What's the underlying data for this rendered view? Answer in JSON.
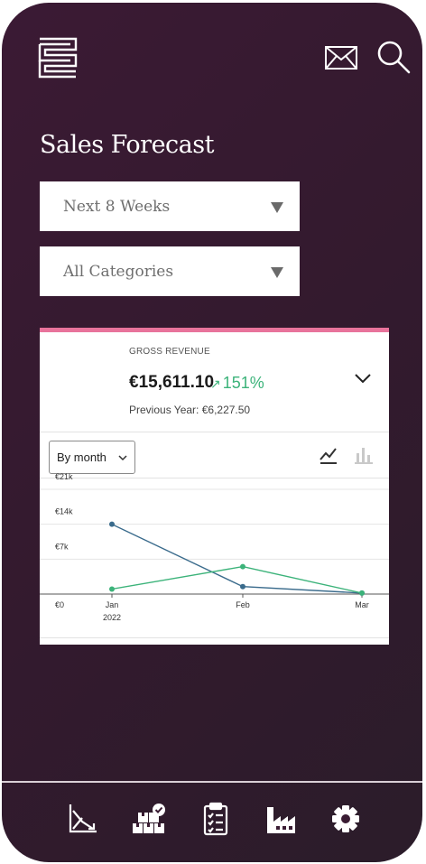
{
  "header": {
    "logo_icon": "brand-logo-icon",
    "mail_icon": "mail-icon",
    "search_icon": "search-icon"
  },
  "page": {
    "title": "Sales Forecast"
  },
  "filters": {
    "period": "Next 8 Weeks",
    "category": "All Categories"
  },
  "card": {
    "accent_color": "#e8739b",
    "label": "GROSS REVENUE",
    "amount": "€15,611.10",
    "growth": "151%",
    "growth_color": "#3cb37a",
    "previous": "Previous Year: €6,227.50",
    "grouping": "By month"
  },
  "chart_data": {
    "type": "line",
    "categories": [
      "Jan",
      "Feb",
      "Mar"
    ],
    "x_sublabels": [
      "2022",
      "",
      ""
    ],
    "y_ticks": [
      "€0",
      "€7k",
      "€14k",
      "€21k"
    ],
    "ylim": [
      0,
      21000
    ],
    "series": [
      {
        "color": "#3a6b8c",
        "values": [
          14000,
          1500,
          200
        ]
      },
      {
        "color": "#3cb37a",
        "values": [
          1000,
          5500,
          200
        ]
      }
    ]
  },
  "bottom_nav": [
    {
      "icon": "trend-chart-icon"
    },
    {
      "icon": "inventory-boxes-icon"
    },
    {
      "icon": "clipboard-checklist-icon"
    },
    {
      "icon": "factory-icon"
    },
    {
      "icon": "settings-gear-icon"
    }
  ]
}
